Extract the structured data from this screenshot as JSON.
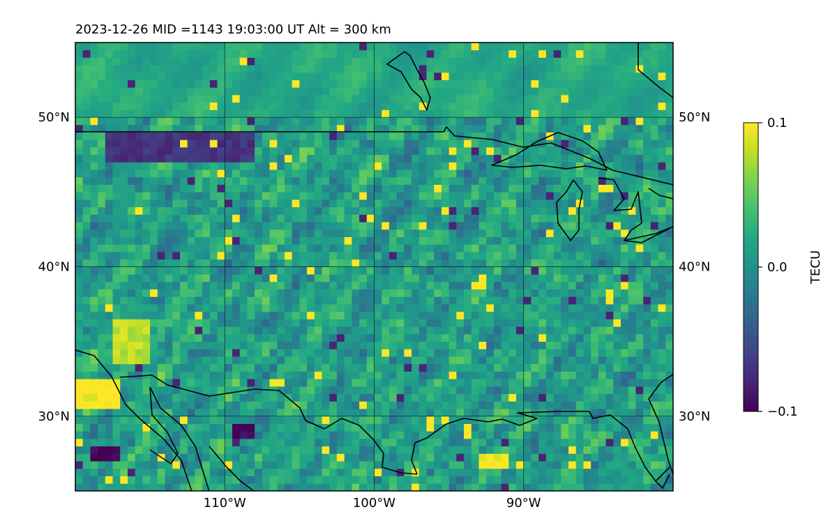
{
  "title": "2023-12-26  MID =1143    19:03:00  UT  Alt = 300 km",
  "chart_data": {
    "type": "heatmap",
    "title": "2023-12-26  MID =1143    19:03:00  UT  Alt = 300 km",
    "map_extent": {
      "lon": [
        -120,
        -80
      ],
      "lat": [
        25,
        55
      ]
    },
    "x_ticks": [
      {
        "value": -110,
        "label": "110°W"
      },
      {
        "value": -100,
        "label": "100°W"
      },
      {
        "value": -90,
        "label": "90°W"
      }
    ],
    "y_ticks": [
      {
        "value": 30,
        "label": "30°N"
      },
      {
        "value": 40,
        "label": "40°N"
      },
      {
        "value": 50,
        "label": "50°N"
      }
    ],
    "grid": true,
    "colorbar": {
      "label": "TECU",
      "colormap": "viridis",
      "min": -0.1,
      "max": 0.1,
      "ticks": [
        {
          "value": 0.1,
          "label": "0.1"
        },
        {
          "value": 0.0,
          "label": "0.0"
        },
        {
          "value": -0.1,
          "label": "−0.1"
        }
      ]
    },
    "grid_resolution_deg": 0.5,
    "features": [
      {
        "name": "saturated-high-sw-texas",
        "lon": [
          -120,
          -117
        ],
        "lat": [
          30.3,
          32.5
        ],
        "value": 0.1
      },
      {
        "name": "high-patch-arizona",
        "lon": [
          -117.5,
          -115
        ],
        "lat": [
          33.5,
          36.5
        ],
        "value": 0.08
      },
      {
        "name": "high-patch-louisiana",
        "lon": [
          -93,
          -91
        ],
        "lat": [
          26.5,
          27.5
        ],
        "value": 0.1
      },
      {
        "name": "low-patch-baja",
        "lon": [
          -119,
          -117
        ],
        "lat": [
          27,
          28
        ],
        "value": -0.1
      },
      {
        "name": "low-patch-sonora",
        "lon": [
          -109.5,
          -108
        ],
        "lat": [
          28.5,
          29.5
        ],
        "value": -0.1
      },
      {
        "name": "low-patch-canada-border",
        "lon": [
          -118,
          -108
        ],
        "lat": [
          47,
          49
        ],
        "value": -0.07
      },
      {
        "name": "smooth-field-canada",
        "lon": [
          -120,
          -80
        ],
        "lat": [
          50,
          55
        ],
        "value": 0.02
      }
    ]
  }
}
